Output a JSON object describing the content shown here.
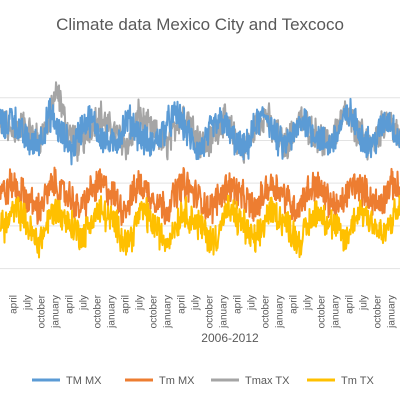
{
  "chart_data": {
    "type": "line",
    "title": "Climate data Mexico City and Texcoco",
    "xlabel": "2006-2012",
    "ylabel": "",
    "grid": true,
    "legend_position": "bottom",
    "x_tick_labels": [
      "april",
      "july",
      "october",
      "january",
      "april",
      "july",
      "october",
      "january",
      "april",
      "july",
      "october",
      "january",
      "april",
      "july",
      "october",
      "january",
      "april",
      "july",
      "october",
      "january",
      "april",
      "july",
      "october",
      "january",
      "april",
      "july",
      "october",
      "january"
    ],
    "series": [
      {
        "name": "TM MX",
        "color": "#5B9BD5",
        "values": [
          26,
          24,
          27,
          25,
          23,
          22,
          21,
          22,
          24,
          27,
          25,
          23,
          22,
          20,
          23,
          25,
          26,
          25,
          23,
          22,
          21,
          22,
          24,
          26,
          25,
          23,
          22,
          21,
          22,
          23,
          25,
          26,
          27,
          25,
          23,
          21,
          20,
          22,
          24,
          25,
          26,
          24,
          22,
          21,
          20,
          22,
          25,
          26,
          27,
          24,
          22,
          21,
          22,
          23,
          25,
          26,
          24,
          23,
          22,
          21,
          22,
          24,
          26,
          27,
          25,
          23,
          22,
          21,
          23,
          25,
          26,
          24,
          22
        ]
      },
      {
        "name": "Tm MX",
        "color": "#ED7D31",
        "values": [
          13,
          12,
          14,
          13,
          12,
          11,
          10,
          9,
          11,
          13,
          14,
          12,
          12,
          11,
          9,
          10,
          12,
          13,
          14,
          13,
          12,
          11,
          9,
          10,
          12,
          14,
          13,
          12,
          11,
          10,
          9,
          11,
          13,
          14,
          13,
          12,
          11,
          10,
          9,
          11,
          12,
          14,
          13,
          12,
          11,
          10,
          9,
          11,
          13,
          14,
          13,
          12,
          11,
          9,
          10,
          12,
          13,
          14,
          12,
          11,
          10,
          9,
          11,
          13,
          14,
          13,
          12,
          11,
          10,
          11,
          13,
          14,
          12
        ]
      },
      {
        "name": "Tmax TX",
        "color": "#A5A5A5",
        "values": [
          24,
          25,
          23,
          24,
          25,
          24,
          23,
          22,
          24,
          26,
          31,
          29,
          24,
          23,
          21,
          22,
          24,
          26,
          27,
          25,
          24,
          23,
          22,
          21,
          23,
          27,
          25,
          24,
          23,
          22,
          21,
          23,
          26,
          27,
          26,
          24,
          22,
          21,
          22,
          24,
          26,
          25,
          23,
          22,
          20,
          22,
          25,
          26,
          27,
          24,
          23,
          21,
          22,
          24,
          26,
          25,
          24,
          23,
          22,
          21,
          23,
          25,
          27,
          26,
          24,
          23,
          22,
          21,
          23,
          25,
          26,
          24,
          22
        ]
      },
      {
        "name": "Tm TX",
        "color": "#FFC000",
        "values": [
          7,
          6,
          8,
          9,
          8,
          6,
          4,
          3,
          5,
          8,
          9,
          8,
          7,
          6,
          5,
          4,
          6,
          8,
          9,
          8,
          7,
          6,
          4,
          3,
          5,
          8,
          9,
          7,
          6,
          4,
          3,
          5,
          7,
          9,
          8,
          7,
          6,
          5,
          3,
          4,
          7,
          9,
          8,
          7,
          6,
          4,
          3,
          5,
          8,
          9,
          8,
          7,
          6,
          4,
          3,
          5,
          7,
          9,
          8,
          7,
          6,
          5,
          3,
          5,
          8,
          9,
          8,
          7,
          5,
          4,
          6,
          8,
          9
        ]
      }
    ]
  }
}
